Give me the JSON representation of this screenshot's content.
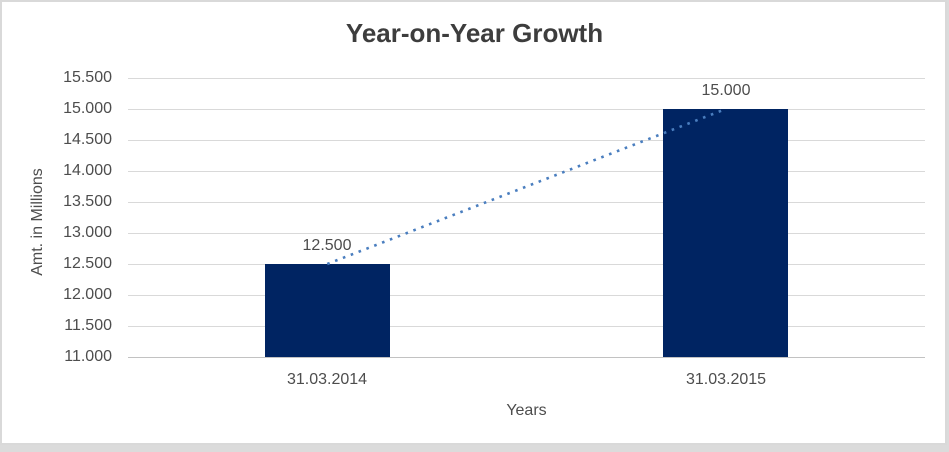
{
  "chart_data": {
    "type": "bar",
    "title": "Year-on-Year Growth",
    "xlabel": "Years",
    "ylabel": "Amt. in Millions",
    "categories": [
      "31.03.2014",
      "31.03.2015"
    ],
    "values": [
      12500,
      15000
    ],
    "data_labels": [
      "12.500",
      "15.000"
    ],
    "y_ticks": [
      15500,
      15000,
      14500,
      14000,
      13500,
      13000,
      12500,
      12000,
      11500,
      11000
    ],
    "y_tick_labels": [
      "15.500",
      "15.000",
      "14.500",
      "14.000",
      "13.500",
      "13.000",
      "12.500",
      "12.000",
      "11.500",
      "11.000"
    ],
    "ylim": [
      11000,
      15500
    ],
    "grid": true,
    "legend": "none",
    "trendline": {
      "type": "linear",
      "style": "dotted",
      "from_value": 12500,
      "to_value": 15000
    },
    "colors": {
      "bar": "#002462",
      "trendline": "#4a7ebf",
      "gridline": "#d9d9d9",
      "axis_line": "#c2c2c2",
      "label_text": "#4d4d4d",
      "title_text": "#3d3d3d",
      "background": "#ffffff",
      "frame_border": "#d9d9d9"
    }
  }
}
